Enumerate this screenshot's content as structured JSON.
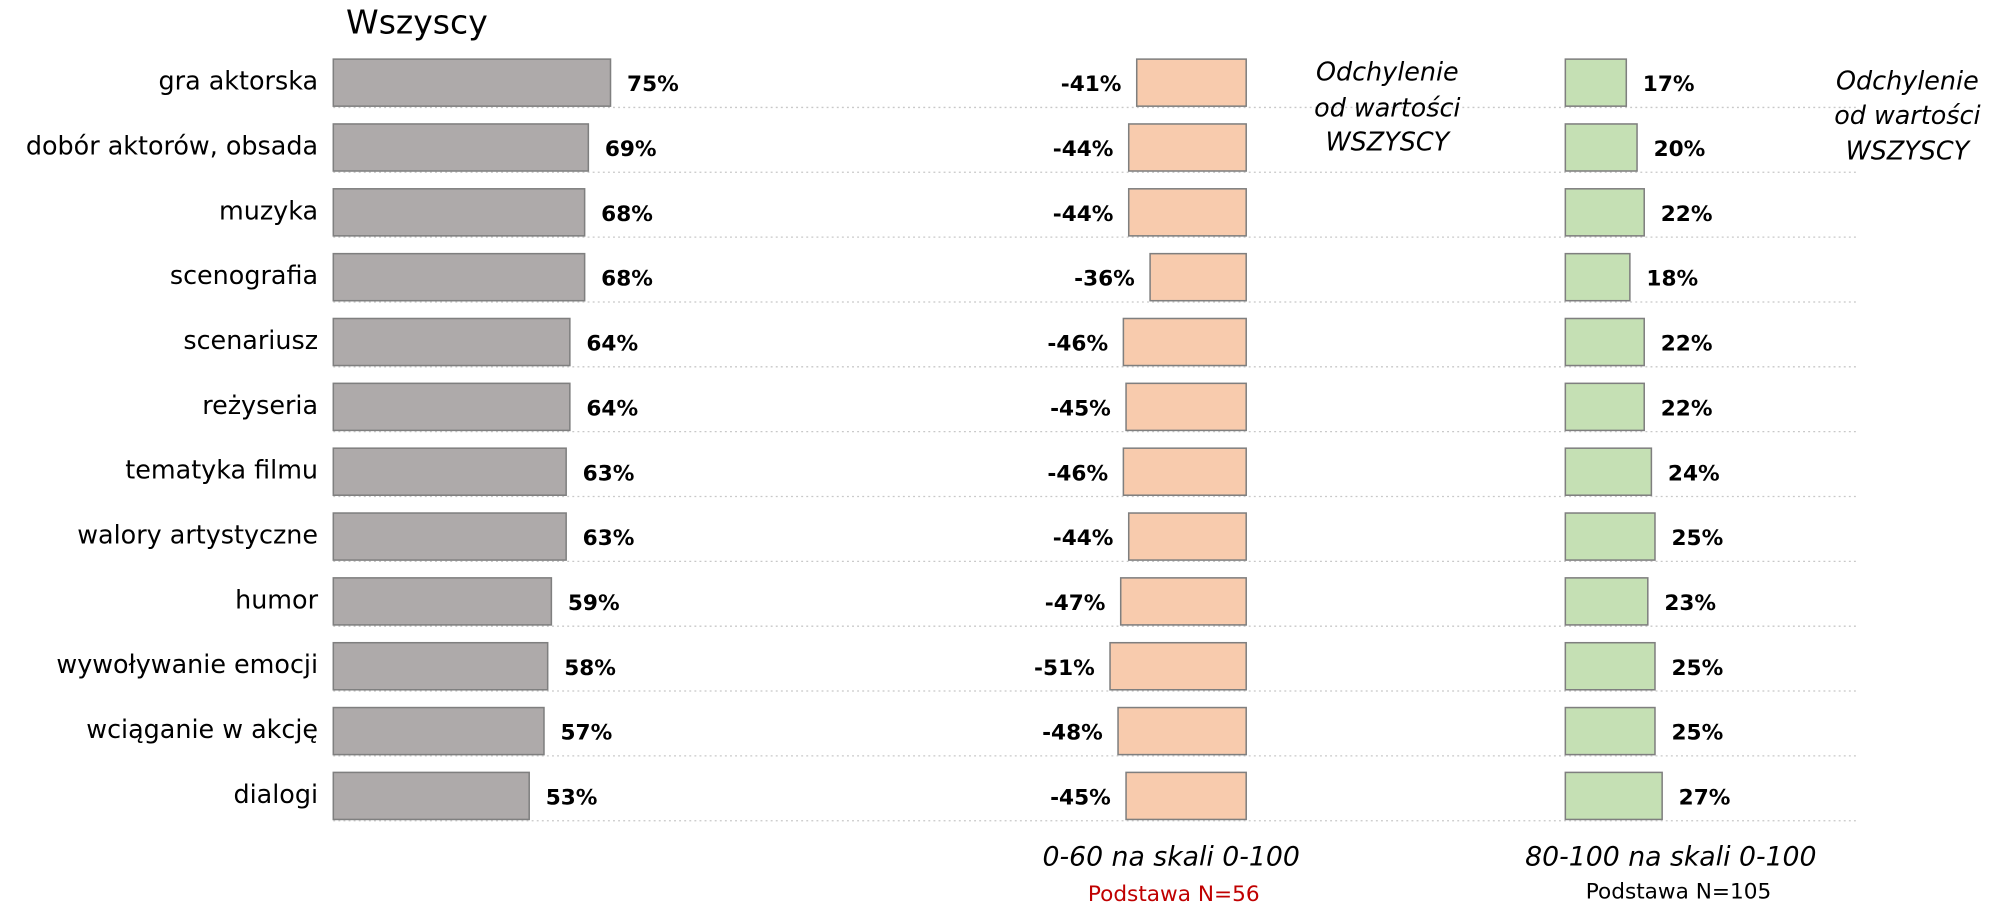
{
  "chart_data": [
    {
      "type": "bar",
      "orientation": "horizontal",
      "title": "Wszyscy",
      "categories": [
        "gra aktorska",
        "dobór aktorów, obsada",
        "muzyka",
        "scenografia",
        "scenariusz",
        "reżyseria",
        "tematyka filmu",
        "walory artystyczne",
        "humor",
        "wywoływanie emocji",
        "wciąganie w akcję",
        "dialogi"
      ],
      "values": [
        75,
        69,
        68,
        68,
        64,
        64,
        63,
        63,
        59,
        58,
        57,
        53
      ],
      "value_labels": [
        "75%",
        "69%",
        "68%",
        "68%",
        "64%",
        "64%",
        "63%",
        "63%",
        "59%",
        "58%",
        "57%",
        "53%"
      ],
      "color": "#aeaaaa"
    },
    {
      "type": "bar",
      "orientation": "horizontal",
      "subtitle": "0-60 na skali 0-100",
      "note": "Podstawa N=56",
      "annotation": [
        "Odchylenie",
        "od wartości",
        "WSZYSCY"
      ],
      "values": [
        -41,
        -44,
        -44,
        -36,
        -46,
        -45,
        -46,
        -44,
        -47,
        -51,
        -48,
        -45
      ],
      "value_labels": [
        "-41%",
        "-44%",
        "-44%",
        "-36%",
        "-46%",
        "-45%",
        "-46%",
        "-44%",
        "-47%",
        "-51%",
        "-48%",
        "-45%"
      ],
      "color": "#f8cbad"
    },
    {
      "type": "bar",
      "orientation": "horizontal",
      "subtitle": "80-100 na skali 0-100",
      "note": "Podstawa N=105",
      "annotation": [
        "Odchylenie",
        "od wartości",
        "WSZYSCY"
      ],
      "values": [
        17,
        20,
        22,
        18,
        22,
        22,
        24,
        25,
        23,
        25,
        25,
        27
      ],
      "value_labels": [
        "17%",
        "20%",
        "22%",
        "18%",
        "22%",
        "22%",
        "24%",
        "25%",
        "23%",
        "25%",
        "25%",
        "27%"
      ],
      "color": "#c5e0b4"
    }
  ]
}
